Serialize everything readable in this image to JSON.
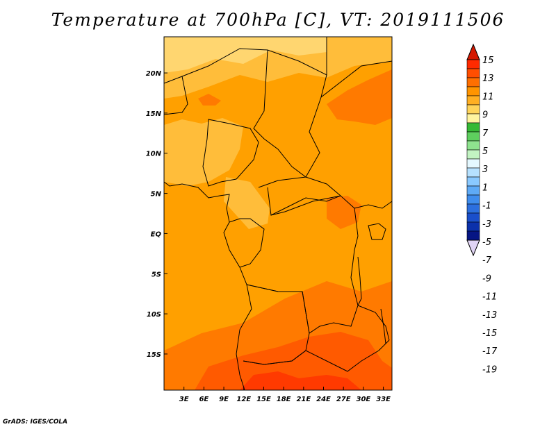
{
  "title": "Temperature at 700hPa [C], VT: 2019111506",
  "credit": "GrADS: IGES/COLA",
  "map": {
    "variable": "Temperature",
    "level": "700hPa",
    "units": "C",
    "valid_time": "2019111506",
    "lon_range": [
      0,
      34.3
    ],
    "lat_range": [
      -19.5,
      24.5
    ],
    "x_ticks": [
      {
        "lon": 3,
        "label": "3E"
      },
      {
        "lon": 6,
        "label": "6E"
      },
      {
        "lon": 9,
        "label": "9E"
      },
      {
        "lon": 12,
        "label": "12E"
      },
      {
        "lon": 15,
        "label": "15E"
      },
      {
        "lon": 18,
        "label": "18E"
      },
      {
        "lon": 21,
        "label": "21E"
      },
      {
        "lon": 24,
        "label": "24E"
      },
      {
        "lon": 27,
        "label": "27E"
      },
      {
        "lon": 30,
        "label": "30E"
      },
      {
        "lon": 33,
        "label": "33E"
      }
    ],
    "y_ticks": [
      {
        "lat": 20,
        "label": "20N"
      },
      {
        "lat": 15,
        "label": "15N"
      },
      {
        "lat": 10,
        "label": "10N"
      },
      {
        "lat": 5,
        "label": "5N"
      },
      {
        "lat": 0,
        "label": "EQ"
      },
      {
        "lat": -5,
        "label": "5S"
      },
      {
        "lat": -10,
        "label": "10S"
      },
      {
        "lat": -15,
        "label": "15S"
      }
    ]
  },
  "colorbar": {
    "labels": [
      "15",
      "13",
      "11",
      "9",
      "7",
      "5",
      "3",
      "1",
      "-1",
      "-3",
      "-5",
      "-7",
      "-9",
      "-11",
      "-13",
      "-15",
      "-17",
      "-19"
    ],
    "colors_top_to_bottom": [
      "#ff2a00",
      "#ff4e00",
      "#ff6f00",
      "#ff9400",
      "#ffaf22",
      "#ffd45a",
      "#fff4a0",
      "#35b935",
      "#5ecf5e",
      "#8ee38e",
      "#c2f3c2",
      "#e4f8ff",
      "#b6e1ff",
      "#8ac9ff",
      "#5eaaf6",
      "#3f8ded",
      "#2c6fde",
      "#1a4fcb",
      "#0b31ab",
      "#061584"
    ],
    "under_color": "#e0d4f4",
    "over_color": "#d51800"
  }
}
